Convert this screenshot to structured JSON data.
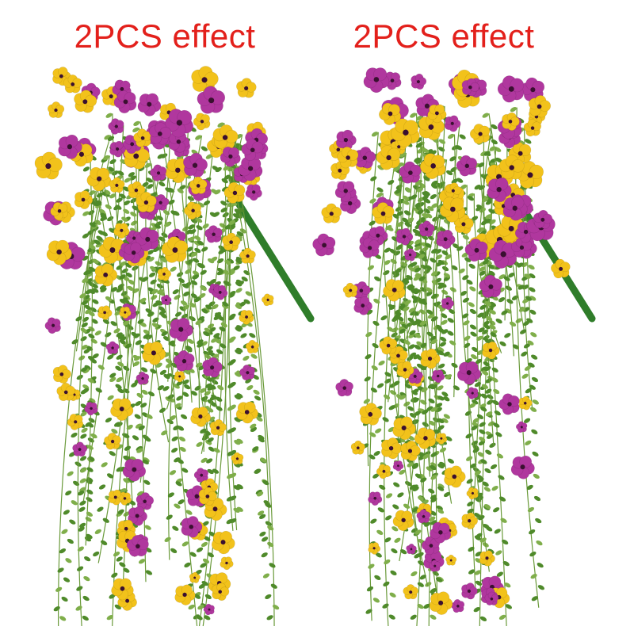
{
  "labels": [
    "2PCS effect",
    "2PCS effect"
  ],
  "colors": {
    "label": "#e3201b",
    "purple_flower": "#b0379e",
    "yellow_flower": "#f2c21b",
    "flower_center": "#3a1030",
    "leaf": "#4f8a2a",
    "stem_handle": "#2f7d2a"
  }
}
